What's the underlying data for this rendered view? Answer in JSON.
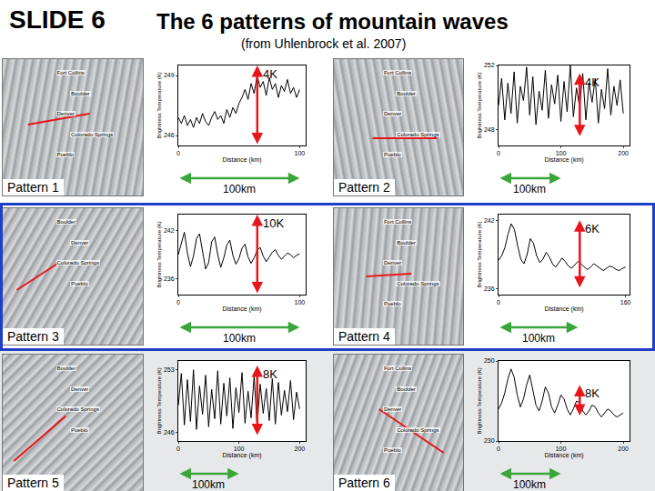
{
  "slide": {
    "label": "SLIDE 6",
    "title": "The 6 patterns of mountain waves",
    "subtitle": "(from Uhlenbrock et al. 2007)"
  },
  "chart_data": [
    {
      "type": "line",
      "pattern": "Pattern 1",
      "cities": [
        "Fort Collins",
        "Boulder",
        "Denver",
        "Colorado Springs",
        "Pueblo"
      ],
      "x_label": "Distance (km)",
      "y_label": "Brightness Temperature (K)",
      "color": "#000000",
      "grid": false,
      "x": [
        0,
        2.5,
        5,
        7.5,
        10,
        12.5,
        15,
        17.5,
        20,
        22.5,
        25,
        27.5,
        30,
        32.5,
        35,
        37.5,
        40,
        42.5,
        45,
        47.5,
        50,
        52.5,
        55,
        57.5,
        60,
        62.5,
        65,
        67.5,
        70,
        72.5,
        75,
        77.5,
        80,
        82.5,
        85,
        87.5,
        90,
        92.5,
        95,
        97.5,
        100
      ],
      "values": [
        246.9,
        246.6,
        247.0,
        246.5,
        246.8,
        246.4,
        246.9,
        246.6,
        247.1,
        246.7,
        246.5,
        246.9,
        247.2,
        246.8,
        247.0,
        246.6,
        247.3,
        246.9,
        247.4,
        247.1,
        247.6,
        247.9,
        248.3,
        247.8,
        248.6,
        248.1,
        249.0,
        248.4,
        248.7,
        248.0,
        248.9,
        248.3,
        248.6,
        247.9,
        248.5,
        248.2,
        248.8,
        248.1,
        248.4,
        247.9,
        248.3
      ],
      "xlim": [
        0,
        105
      ],
      "xticks": [
        0,
        100
      ],
      "ylim": [
        245.5,
        249.5
      ],
      "yticks": [
        246,
        249
      ],
      "amplitude": {
        "value": 4,
        "label": "4K"
      },
      "distance_scale": {
        "value": 100,
        "label": "100km"
      }
    },
    {
      "type": "line",
      "pattern": "Pattern 2",
      "cities": [
        "Fort Collins",
        "Boulder",
        "Denver",
        "Colorado Springs",
        "Pueblo"
      ],
      "x_label": "Distance (km)",
      "y_label": "Brightness Temperature (K)",
      "color": "#000000",
      "grid": false,
      "x": [
        0,
        5,
        10,
        15,
        20,
        25,
        30,
        35,
        40,
        45,
        50,
        55,
        60,
        65,
        70,
        75,
        80,
        85,
        90,
        95,
        100,
        105,
        110,
        115,
        120,
        125,
        130,
        135,
        140,
        145,
        150,
        155,
        160,
        165,
        170,
        175,
        180,
        185,
        190,
        195,
        200
      ],
      "values": [
        249.5,
        251.2,
        248.6,
        250.9,
        249.0,
        251.6,
        248.4,
        250.7,
        249.8,
        251.9,
        248.9,
        251.3,
        248.3,
        250.4,
        249.2,
        251.7,
        248.7,
        250.8,
        249.6,
        251.4,
        248.5,
        251.0,
        249.1,
        252.0,
        248.8,
        250.6,
        249.4,
        251.5,
        248.6,
        250.9,
        249.7,
        251.2,
        248.4,
        250.5,
        249.3,
        251.8,
        248.9,
        250.7,
        249.5,
        251.1,
        249.0
      ],
      "xlim": [
        0,
        210
      ],
      "xticks": [
        0,
        100,
        200
      ],
      "ylim": [
        247,
        252
      ],
      "yticks": [
        248,
        252
      ],
      "amplitude": {
        "value": 4,
        "label": "4K"
      },
      "distance_scale": {
        "value": 100,
        "label": "100km"
      }
    },
    {
      "type": "line",
      "pattern": "Pattern 3",
      "cities": [
        "Boulder",
        "Denver",
        "Colorado Springs",
        "Pueblo"
      ],
      "x_label": "Distance (km)",
      "y_label": "Brightness Temperature (K)",
      "color": "#000000",
      "grid": false,
      "x": [
        0,
        2.5,
        5,
        7.5,
        10,
        12.5,
        15,
        17.5,
        20,
        22.5,
        25,
        27.5,
        30,
        32.5,
        35,
        37.5,
        40,
        42.5,
        45,
        47.5,
        50,
        52.5,
        55,
        57.5,
        60,
        62.5,
        65,
        67.5,
        70,
        72.5,
        75,
        77.5,
        80,
        82.5,
        85,
        87.5,
        90,
        92.5,
        95,
        97.5,
        100
      ],
      "values": [
        239.0,
        240.5,
        241.8,
        239.2,
        237.5,
        238.8,
        241.0,
        241.6,
        239.5,
        237.2,
        238.0,
        240.6,
        241.2,
        239.0,
        237.4,
        238.6,
        240.2,
        240.8,
        238.9,
        237.8,
        238.5,
        239.8,
        240.3,
        238.7,
        237.9,
        238.6,
        239.5,
        239.9,
        238.8,
        238.1,
        238.7,
        239.3,
        239.6,
        238.9,
        238.4,
        238.8,
        239.2,
        239.0,
        238.6,
        238.9,
        239.1
      ],
      "xlim": [
        0,
        105
      ],
      "xticks": [
        0,
        100
      ],
      "ylim": [
        234,
        244
      ],
      "yticks": [
        236,
        242
      ],
      "amplitude": {
        "value": 10,
        "label": "10K"
      },
      "distance_scale": {
        "value": 100,
        "label": "100km"
      }
    },
    {
      "type": "line",
      "pattern": "Pattern 4",
      "cities": [
        "Fort Collins",
        "Boulder",
        "Denver",
        "Colorado Springs",
        "Pueblo"
      ],
      "x_label": "Distance (km)",
      "y_label": "Brightness Temperature (K)",
      "color": "#000000",
      "grid": false,
      "x": [
        0,
        4,
        8,
        12,
        16,
        20,
        24,
        28,
        32,
        36,
        40,
        44,
        48,
        52,
        56,
        60,
        64,
        68,
        72,
        76,
        80,
        84,
        88,
        92,
        96,
        100,
        104,
        108,
        112,
        116,
        120,
        124,
        128,
        132,
        136,
        140,
        144,
        148,
        152,
        156,
        160
      ],
      "values": [
        238.5,
        238.9,
        239.6,
        240.8,
        241.7,
        241.2,
        239.8,
        238.6,
        238.2,
        239.0,
        240.4,
        240.0,
        238.9,
        238.3,
        238.6,
        239.2,
        238.8,
        238.2,
        237.9,
        238.3,
        238.7,
        238.4,
        238.0,
        237.8,
        238.1,
        238.4,
        238.2,
        237.9,
        237.7,
        237.9,
        238.2,
        238.0,
        237.8,
        237.6,
        237.8,
        238.0,
        237.9,
        237.7,
        237.6,
        237.8,
        237.9
      ],
      "xlim": [
        0,
        165
      ],
      "xticks": [
        0,
        160
      ],
      "ylim": [
        235.5,
        242.5
      ],
      "yticks": [
        236,
        242
      ],
      "amplitude": {
        "value": 6,
        "label": "6K"
      },
      "distance_scale": {
        "value": 100,
        "label": "100km"
      }
    },
    {
      "type": "line",
      "pattern": "Pattern 5",
      "cities": [
        "Boulder",
        "Denver",
        "Colorado Springs",
        "Pueblo"
      ],
      "x_label": "Distance (km)",
      "y_label": "Brightness Temperature (K)",
      "color": "#000000",
      "grid": false,
      "x": [
        0,
        5,
        10,
        15,
        20,
        25,
        30,
        35,
        40,
        45,
        50,
        55,
        60,
        65,
        70,
        75,
        80,
        85,
        90,
        95,
        100,
        105,
        110,
        115,
        120,
        125,
        130,
        135,
        140,
        145,
        150,
        155,
        160,
        165,
        170,
        175,
        180,
        185,
        190,
        195,
        200
      ],
      "values": [
        249.0,
        252.6,
        246.8,
        251.9,
        247.2,
        253.0,
        246.3,
        251.2,
        248.0,
        252.4,
        246.6,
        250.8,
        247.5,
        252.9,
        246.9,
        251.5,
        247.8,
        252.1,
        246.4,
        251.0,
        248.2,
        252.7,
        247.0,
        250.6,
        247.6,
        252.3,
        246.7,
        251.4,
        248.1,
        250.9,
        247.3,
        252.0,
        246.9,
        251.6,
        247.9,
        250.7,
        248.3,
        251.8,
        247.4,
        250.5,
        248.6
      ],
      "xlim": [
        0,
        210
      ],
      "xticks": [
        0,
        100,
        200
      ],
      "ylim": [
        245,
        254
      ],
      "yticks": [
        246,
        253
      ],
      "amplitude": {
        "value": 8,
        "label": "8K"
      },
      "distance_scale": {
        "value": 100,
        "label": "100km"
      }
    },
    {
      "type": "line",
      "pattern": "Pattern 6",
      "cities": [
        "Fort Collins",
        "Boulder",
        "Denver",
        "Colorado Springs",
        "Pueblo"
      ],
      "x_label": "Distance (km)",
      "y_label": "Brightness Temperature (K)",
      "color": "#000000",
      "grid": false,
      "x": [
        0,
        5,
        10,
        15,
        20,
        25,
        30,
        35,
        40,
        45,
        50,
        55,
        60,
        65,
        70,
        75,
        80,
        85,
        90,
        95,
        100,
        105,
        110,
        115,
        120,
        125,
        130,
        135,
        140,
        145,
        150,
        155,
        160,
        165,
        170,
        175,
        180,
        185,
        190,
        195,
        200
      ],
      "values": [
        238.0,
        239.5,
        242.0,
        245.5,
        248.0,
        246.0,
        241.5,
        238.5,
        240.5,
        244.0,
        246.5,
        243.0,
        239.0,
        237.5,
        240.0,
        243.5,
        242.0,
        238.5,
        237.0,
        239.0,
        241.5,
        240.5,
        238.0,
        236.5,
        238.0,
        240.0,
        239.5,
        237.5,
        236.5,
        237.5,
        239.0,
        238.5,
        237.0,
        236.0,
        237.0,
        238.0,
        237.5,
        236.5,
        236.0,
        236.5,
        237.0
      ],
      "xlim": [
        0,
        210
      ],
      "xticks": [
        0,
        100,
        200
      ],
      "ylim": [
        230,
        250
      ],
      "yticks": [
        230,
        250
      ],
      "amplitude": {
        "value": 8,
        "label": "8K"
      },
      "distance_scale": {
        "value": 100,
        "label": "100km"
      }
    }
  ]
}
